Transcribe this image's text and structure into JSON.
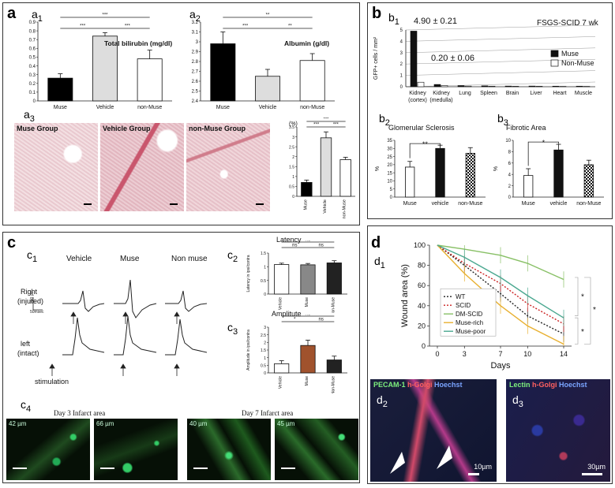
{
  "panel_a": {
    "letter": "a",
    "a1": {
      "tag": "a",
      "sub": "1",
      "title": "Total bilirubin (mg/dl)"
    },
    "a2": {
      "tag": "a",
      "sub": "2",
      "title": "Albumin (g/dl)"
    },
    "a3": {
      "tag": "a",
      "sub": "3",
      "unit": "(%)",
      "hist": [
        "Muse Group",
        "Vehicle Group",
        "non-Muse Group"
      ]
    }
  },
  "panel_b": {
    "letter": "b",
    "b1": {
      "tag": "b",
      "sub": "1",
      "title": "FSGS-SCID 7 wk",
      "annot_kidney": "4.90 ± 0.21",
      "annot_medulla": "0.20 ± 0.06",
      "ylabel": "GFP+ cells / mm²",
      "legend": [
        "Muse",
        "Non-Muse"
      ]
    },
    "b2": {
      "tag": "b",
      "sub": "2",
      "title": "Glomerular Sclerosis",
      "ylabel": "%",
      "sig": "**"
    },
    "b3": {
      "tag": "b",
      "sub": "3",
      "title": "Fibrotic Area",
      "ylabel": "%",
      "sig": "*"
    }
  },
  "panel_c": {
    "letter": "c",
    "c1": {
      "tag": "c",
      "sub": "1",
      "cols": [
        "Vehicle",
        "Muse",
        "Non muse"
      ],
      "rows": [
        "Right",
        "(injured)",
        "left",
        "(intact)"
      ],
      "stim": "stimulation",
      "scale_v": "200 µV",
      "scale_t": "50msec"
    },
    "c2": {
      "tag": "c",
      "sub": "2",
      "title": "Latency",
      "ylabel": "Latency in ipsi/contra",
      "sig": [
        "ns",
        "ns",
        "ns"
      ]
    },
    "c3": {
      "tag": "c",
      "sub": "3",
      "title": "Amplitute",
      "ylabel": "Amplitude in ipsi/contra",
      "sig": [
        "ns",
        "*",
        "ns"
      ]
    },
    "c4": {
      "tag": "c",
      "sub": "4",
      "groups": [
        "Day 3 Infarct area",
        "Day 7 Infarct area"
      ],
      "depths": [
        "42 µm",
        "66 µm",
        "40 µm",
        "45 µm"
      ]
    }
  },
  "panel_d": {
    "letter": "d",
    "d1": {
      "tag": "d",
      "sub": "1",
      "sig": [
        "*",
        "*",
        "*"
      ]
    },
    "d2": {
      "tag": "d",
      "sub": "2",
      "stains": [
        "PECAM-1",
        "h-Golgi",
        "Hoechst"
      ],
      "scale": "10µm"
    },
    "d3": {
      "tag": "d",
      "sub": "3",
      "stains": [
        "Lectin",
        "h-Golgi",
        "Hoechst"
      ],
      "scale": "30µm"
    }
  },
  "chart_data": [
    {
      "id": "a1",
      "type": "bar",
      "categories": [
        "Muse",
        "Vehicle",
        "non-Muse"
      ],
      "values": [
        0.26,
        0.74,
        0.48
      ],
      "errors": [
        0.05,
        0.04,
        0.1
      ],
      "colors": [
        "#000000",
        "#dddddd",
        "#ffffff"
      ],
      "ylim": [
        0,
        0.9
      ],
      "yticks": [
        0,
        0.1,
        0.2,
        0.3,
        0.4,
        0.5,
        0.6,
        0.7,
        0.8,
        0.9
      ],
      "sig": [
        "***",
        "***",
        "***"
      ]
    },
    {
      "id": "a2",
      "type": "bar",
      "categories": [
        "Muse",
        "Vehicle",
        "non-Muse"
      ],
      "values": [
        2.98,
        2.65,
        2.81
      ],
      "errors": [
        0.12,
        0.07,
        0.07
      ],
      "colors": [
        "#000000",
        "#dddddd",
        "#ffffff"
      ],
      "ylim": [
        2.4,
        3.2
      ],
      "yticks": [
        2.4,
        2.5,
        2.6,
        2.7,
        2.8,
        2.9,
        3.0,
        3.1,
        3.2
      ],
      "sig": [
        "**",
        "***",
        "**"
      ]
    },
    {
      "id": "a3",
      "type": "bar",
      "categories": [
        "Muse",
        "Vehicle",
        "non-Muse"
      ],
      "values": [
        0.7,
        2.95,
        1.85
      ],
      "errors": [
        0.12,
        0.3,
        0.12
      ],
      "colors": [
        "#000000",
        "#dddddd",
        "#ffffff"
      ],
      "ylim": [
        0,
        3.5
      ],
      "yticks": [
        0,
        0.5,
        1,
        1.5,
        2,
        2.5,
        3,
        3.5
      ],
      "sig": [
        "***",
        "***",
        "***"
      ]
    },
    {
      "id": "b1",
      "type": "bar",
      "categories": [
        "Kidney (cortex)",
        "Kidney (medulla)",
        "Lung",
        "Spleen",
        "Brain",
        "Liver",
        "Heart",
        "Muscle"
      ],
      "series": [
        {
          "name": "Muse",
          "values": [
            4.9,
            0.2,
            0.1,
            0.08,
            0.06,
            0.06,
            0.05,
            0.05
          ]
        },
        {
          "name": "Non-Muse",
          "values": [
            0.4,
            0.1,
            0.06,
            0.05,
            0.04,
            0.04,
            0.03,
            0.03
          ]
        }
      ],
      "ylim": [
        0,
        5
      ],
      "yticks": [
        0,
        1,
        2,
        3,
        4,
        5
      ]
    },
    {
      "id": "b2",
      "type": "bar",
      "categories": [
        "Muse",
        "vehicle",
        "non-Muse"
      ],
      "values": [
        18.5,
        30,
        27
      ],
      "errors": [
        3.5,
        2,
        3.5
      ],
      "ylim": [
        0,
        35
      ],
      "yticks": [
        0,
        5,
        10,
        15,
        20,
        25,
        30,
        35
      ]
    },
    {
      "id": "b3",
      "type": "bar",
      "categories": [
        "Muse",
        "vehicle",
        "non-Muse"
      ],
      "values": [
        3.8,
        8.3,
        5.7
      ],
      "errors": [
        1.2,
        1,
        0.8
      ],
      "ylim": [
        0,
        10
      ],
      "yticks": [
        0,
        2,
        4,
        6,
        8,
        10
      ]
    },
    {
      "id": "c2",
      "type": "bar",
      "categories": [
        "Vehicle",
        "Muse",
        "Non-Muse"
      ],
      "values": [
        1.08,
        1.07,
        1.14
      ],
      "errors": [
        0.05,
        0.05,
        0.08
      ],
      "ylim": [
        0,
        1.5
      ],
      "yticks": [
        0,
        0.5,
        1,
        1.5
      ]
    },
    {
      "id": "c3",
      "type": "bar",
      "categories": [
        "Vehicle",
        "Muse",
        "Non-Muse"
      ],
      "values": [
        0.6,
        1.8,
        0.85
      ],
      "errors": [
        0.2,
        0.35,
        0.25
      ],
      "ylim": [
        0,
        3
      ],
      "yticks": [
        0,
        0.5,
        1,
        1.5,
        2,
        2.5,
        3
      ]
    },
    {
      "id": "d1",
      "type": "line",
      "x": [
        0,
        3,
        7,
        10,
        14
      ],
      "xlabel": "Days",
      "ylabel": "Wound area (%)",
      "ylim": [
        0,
        100
      ],
      "yticks": [
        0,
        20,
        40,
        60,
        80,
        100
      ],
      "series": [
        {
          "name": "WT",
          "values": [
            100,
            80,
            52,
            30,
            12
          ],
          "color": "#222222",
          "dash": "2,2"
        },
        {
          "name": "SCID",
          "values": [
            100,
            82,
            62,
            42,
            22
          ],
          "color": "#cc2222",
          "dash": "2,2"
        },
        {
          "name": "DM-SCID",
          "values": [
            100,
            96,
            90,
            82,
            66
          ],
          "color": "#88c066",
          "dash": ""
        },
        {
          "name": "Muse-rich",
          "values": [
            100,
            72,
            40,
            20,
            2
          ],
          "color": "#e8b030",
          "dash": ""
        },
        {
          "name": "Muse-poor",
          "values": [
            100,
            88,
            68,
            50,
            28
          ],
          "color": "#4aa890",
          "dash": ""
        }
      ]
    }
  ]
}
